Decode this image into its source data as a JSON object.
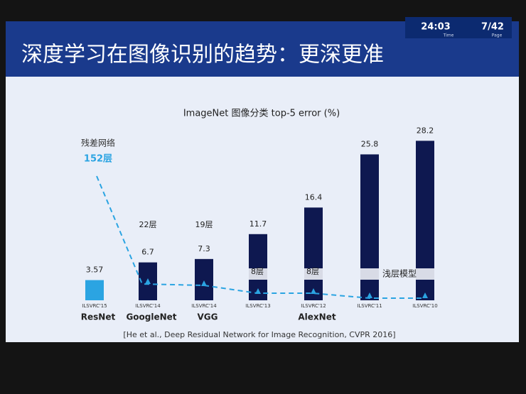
{
  "slide": {
    "title": "深度学习在图像识别的趋势：更深更准",
    "time": "24:03",
    "time_label": "Time",
    "page": "7/42",
    "page_label": "Page",
    "citation": "[He et al., Deep Residual Network for Image Recognition, CVPR 2016]"
  },
  "chart_data": {
    "type": "bar",
    "title": "ImageNet 图像分类 top-5 error (%)",
    "categories": [
      "ILSVRC'15",
      "ILSVRC'14",
      "ILSVRC'14",
      "ILSVRC'13",
      "ILSVRC'12",
      "ILSVRC'11",
      "ILSVRC'10"
    ],
    "models": [
      "ResNet",
      "GoogleNet",
      "VGG",
      null,
      "AlexNet",
      null,
      null
    ],
    "values": [
      3.57,
      6.7,
      7.3,
      11.7,
      16.4,
      25.8,
      28.2
    ],
    "colors": [
      "#2ba4e2",
      "#0e1850",
      "#0e1850",
      "#0e1850",
      "#0e1850",
      "#0e1850",
      "#0e1850"
    ],
    "layer_labels": [
      "152层",
      "22层",
      "19层",
      "8层",
      "8层",
      null,
      null
    ],
    "residual_label": "残差网络",
    "shallow_label": "浅层模型",
    "ylim": [
      0,
      30
    ]
  }
}
